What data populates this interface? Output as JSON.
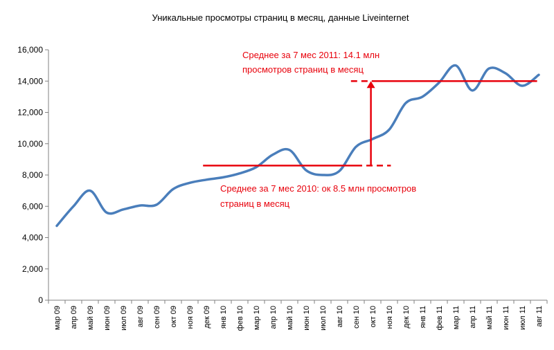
{
  "chart_data": {
    "type": "line",
    "title": "Уникальные просмотры страниц в месяц, данные Liveinternet",
    "xlabel": "",
    "ylabel": "",
    "ylim": [
      0,
      16000
    ],
    "yticks": [
      "0",
      "2,000",
      "4,000",
      "6,000",
      "8,000",
      "10,000",
      "12,000",
      "14,000",
      "16,000"
    ],
    "grid": false,
    "categories": [
      "мар 09",
      "апр 09",
      "май 09",
      "июн 09",
      "июл 09",
      "авг 09",
      "сен 09",
      "окт 09",
      "ноя 09",
      "дек 09",
      "янв 10",
      "фев 10",
      "мар 10",
      "апр 10",
      "май 10",
      "июн 10",
      "июл 10",
      "авг 10",
      "сен 10",
      "окт 10",
      "ноя 10",
      "дек 10",
      "янв 11",
      "фев 11",
      "мар 11",
      "апр 11",
      "май 11",
      "июн 11",
      "июл 11",
      "авг 11"
    ],
    "series": [
      {
        "color": "#4a7ebb",
        "values": [
          4750,
          6000,
          7000,
          5600,
          5800,
          6050,
          6100,
          7100,
          7500,
          7700,
          7850,
          8100,
          8500,
          9300,
          9600,
          8300,
          8000,
          8250,
          9800,
          10300,
          10900,
          12600,
          13000,
          13900,
          15000,
          13400,
          14800,
          14500,
          13700,
          14400
        ]
      }
    ],
    "annotations": [
      {
        "text_lines": [
          "Среднее за 7 мес 2011: 14.1 млн",
          "просмотров страниц в месяц"
        ]
      },
      {
        "text_lines": [
          "Среднее за 7 мес 2010: ок 8.5  млн просмотров",
          "страниц в месяц"
        ]
      }
    ],
    "reference_lines": [
      {
        "label": "avg2010",
        "value": 8600,
        "from": "дек 09",
        "to": "сен 10",
        "dashed_to": "окт 10"
      },
      {
        "label": "avg2011",
        "value": 14000,
        "from": "окт 10",
        "to": "авг 11",
        "dashed_from": "сен 10"
      }
    ],
    "arrow": {
      "at": "окт 10",
      "from_value": 8600,
      "to_value": 14000
    },
    "annotation_color": "#e8000b"
  }
}
